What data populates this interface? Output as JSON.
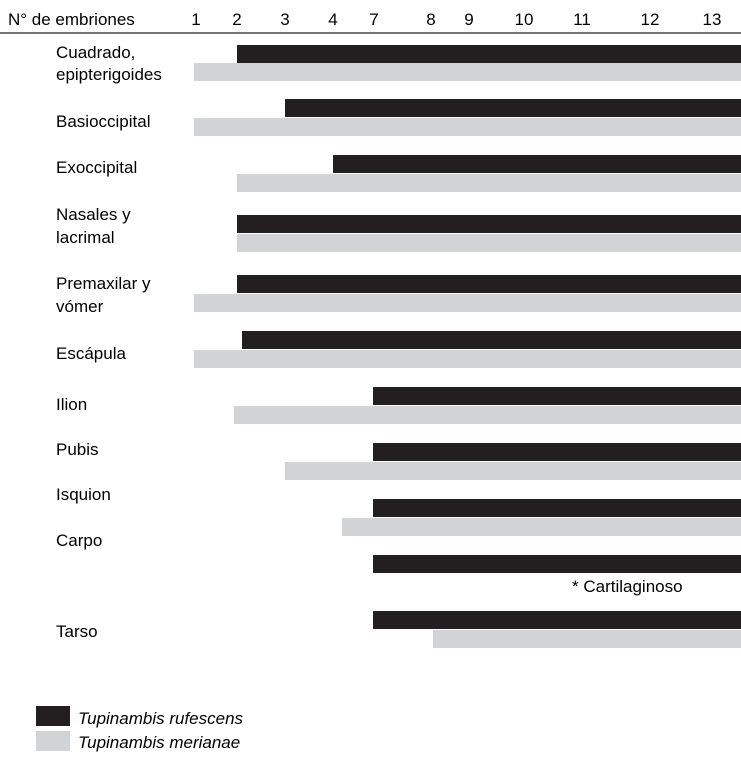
{
  "chart_data": {
    "type": "bar",
    "header_label": "N° de embriones",
    "x_ticks": [
      1,
      2,
      3,
      4,
      7,
      8,
      9,
      10,
      11,
      12,
      13
    ],
    "categories": [
      {
        "label": [
          "Cuadrado,",
          "epipterigoides"
        ],
        "bars": [
          2,
          1
        ]
      },
      {
        "label": [
          "Basioccipital"
        ],
        "bars": [
          3,
          1
        ]
      },
      {
        "label": [
          "Exoccipital"
        ],
        "bars": [
          4,
          2
        ]
      },
      {
        "label": [
          "Nasales y",
          "lacrimal"
        ],
        "bars": [
          2,
          2
        ]
      },
      {
        "label": [
          "Premaxilar y",
          "vómer"
        ],
        "bars": [
          2,
          1
        ]
      },
      {
        "label": [
          "Escápula"
        ],
        "bars": [
          2,
          1
        ]
      },
      {
        "label": [
          "Ilion"
        ],
        "bars": [
          7,
          2
        ]
      },
      {
        "label": [
          "Pubis"
        ],
        "bars": [
          7,
          3
        ]
      },
      {
        "label": [
          "Isquion"
        ],
        "bars": [
          7,
          4
        ]
      },
      {
        "label": [
          "Carpo"
        ],
        "bars": [
          7,
          null
        ]
      },
      {
        "label": [
          "Tarso"
        ],
        "bars": [
          7,
          8
        ]
      }
    ],
    "series": [
      {
        "name": "Tupinambis rufescens",
        "color": "#231f20"
      },
      {
        "name": "Tupinambis merianae",
        "color": "#d1d3d4"
      }
    ],
    "end_value": 13,
    "note": "* Cartilaginoso",
    "legend_position": "bottom-left"
  }
}
